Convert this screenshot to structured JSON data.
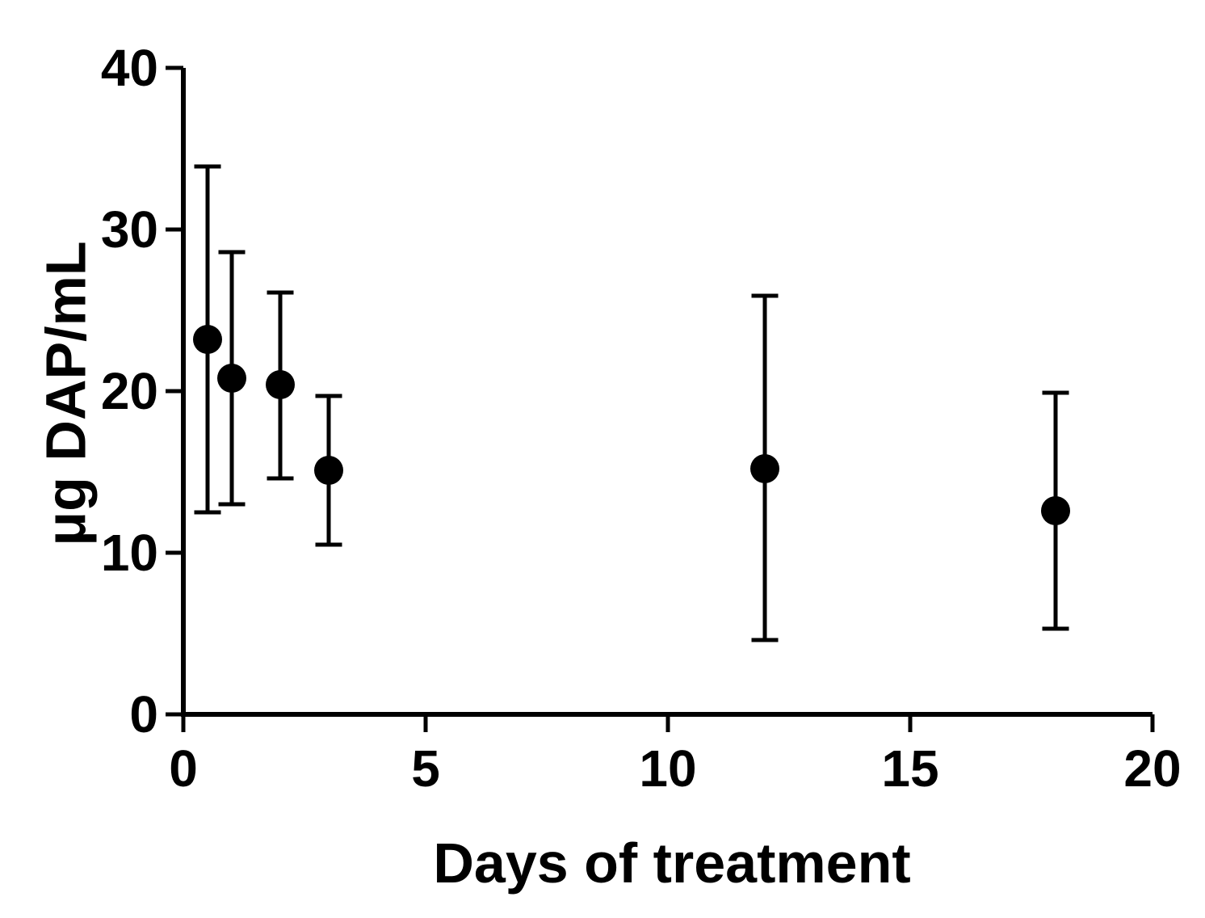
{
  "figure": {
    "background_color": "#ffffff",
    "axis_color": "#000000",
    "marker_color": "#000000"
  },
  "chart_data": {
    "type": "scatter",
    "title": "",
    "xlabel": "Days of treatment",
    "ylabel": "μg DAP/mL",
    "xlim": [
      0,
      20
    ],
    "ylim": [
      0,
      40
    ],
    "x_ticks": [
      0,
      5,
      10,
      15,
      20
    ],
    "y_ticks": [
      0,
      10,
      20,
      30,
      40
    ],
    "grid": false,
    "legend": null,
    "marker": "filled-circle",
    "error_bars": "vertical-with-caps",
    "series": [
      {
        "points": [
          {
            "x": 0.5,
            "y": 23.2,
            "y_upper": 33.9,
            "y_lower": 12.5
          },
          {
            "x": 1,
            "y": 20.8,
            "y_upper": 28.6,
            "y_lower": 13.0
          },
          {
            "x": 2,
            "y": 20.4,
            "y_upper": 26.1,
            "y_lower": 14.6
          },
          {
            "x": 3,
            "y": 15.1,
            "y_upper": 19.7,
            "y_lower": 10.5
          },
          {
            "x": 12,
            "y": 15.2,
            "y_upper": 25.9,
            "y_lower": 4.6
          },
          {
            "x": 18,
            "y": 12.6,
            "y_upper": 19.9,
            "y_lower": 5.3
          }
        ]
      }
    ]
  }
}
